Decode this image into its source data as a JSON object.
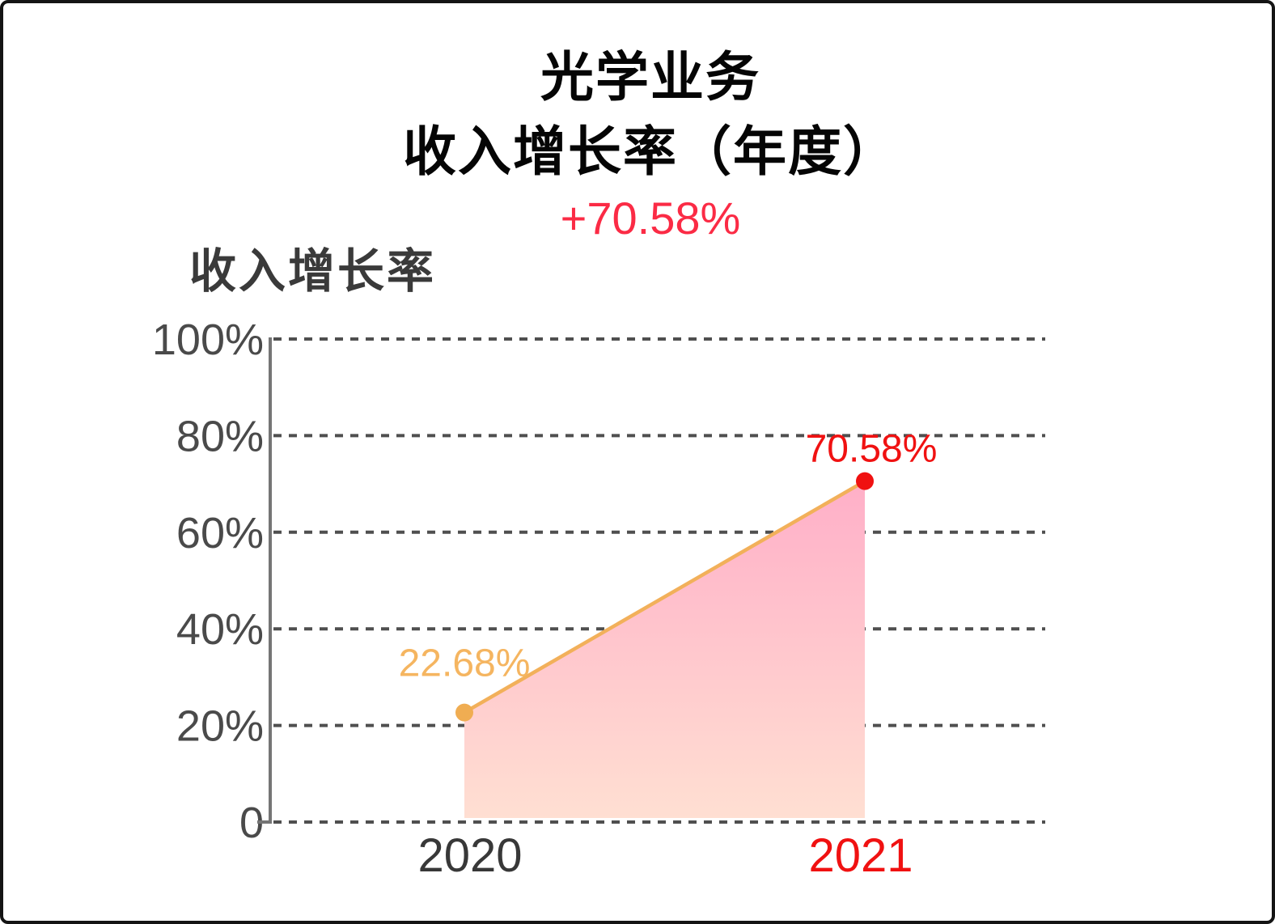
{
  "page": {
    "background": "#FFFFFF",
    "border_color": "#141414"
  },
  "header": {
    "title_line1": "光学业务",
    "title_line2": "收入增长率（年度）",
    "delta_label": "+70.58%",
    "delta_color": "#FB2B45"
  },
  "chart_label": "收入增长率",
  "chart_data": {
    "type": "area",
    "title": "光学业务 收入增长率（年度）",
    "series_name": "收入增长率",
    "categories": [
      "2020",
      "2021"
    ],
    "values": [
      22.68,
      70.58
    ],
    "point_labels": [
      "22.68%",
      "70.58%"
    ],
    "overall_change_label": "+70.58%",
    "y_ticks": [
      "100%",
      "80%",
      "60%",
      "40%",
      "20%",
      "0"
    ],
    "y_tick_values": [
      100,
      80,
      60,
      40,
      20,
      0
    ],
    "ylim": [
      0,
      100
    ],
    "grid": "horizontal-dashed",
    "legend": "none",
    "colors": {
      "line": "#F2B05A",
      "points": [
        "#F0AD52",
        "#F01111"
      ],
      "point_label_colors": [
        "#F5B560",
        "#F01111"
      ],
      "area_top": "#FFAFC8",
      "area_bottom": "#FFDFD2",
      "grid": "#4F4F4F",
      "axis": "#757575",
      "y_tick_text": "#4A4A4A",
      "category_text": [
        "#383838",
        "#F01111"
      ]
    }
  }
}
